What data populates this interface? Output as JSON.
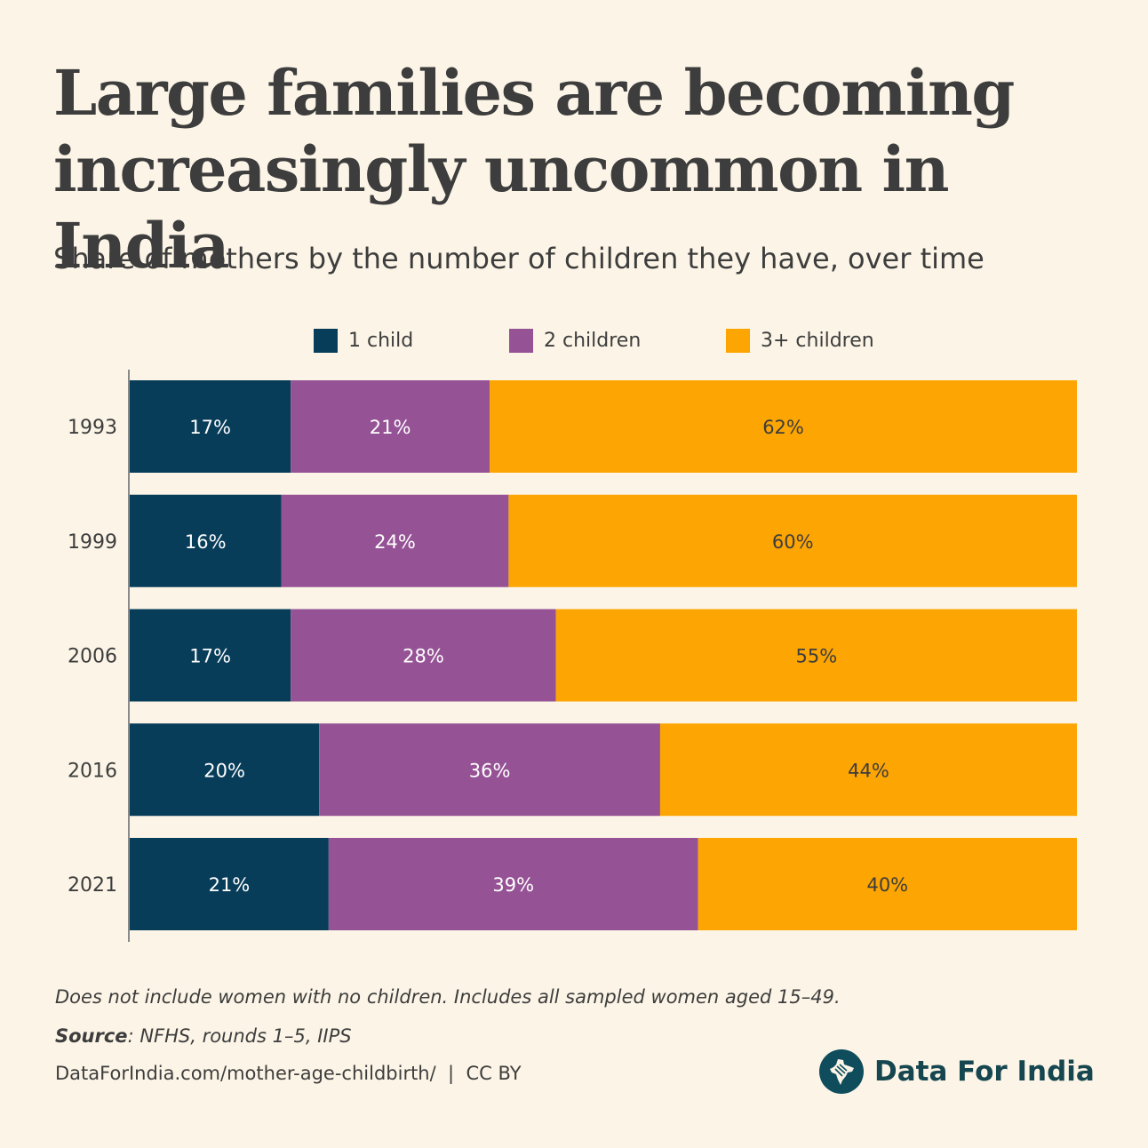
{
  "title": "Large families are becoming increasingly uncommon in India",
  "subtitle": "Share of mothers by the number of children they have, over time",
  "legend": [
    {
      "label": "1 child",
      "color": "#083d5a"
    },
    {
      "label": "2 children",
      "color": "#955395"
    },
    {
      "label": "3+ children",
      "color": "#fca503"
    }
  ],
  "chart_data": {
    "type": "bar",
    "orientation": "horizontal",
    "stacked": true,
    "categories": [
      "1993",
      "1999",
      "2006",
      "2016",
      "2021"
    ],
    "series": [
      {
        "name": "1 child",
        "color": "#083d5a",
        "values": [
          17,
          16,
          17,
          20,
          21
        ],
        "labels": [
          "17%",
          "16%",
          "17%",
          "20%",
          "21%"
        ]
      },
      {
        "name": "2 children",
        "color": "#955395",
        "values": [
          21,
          24,
          28,
          36,
          39
        ],
        "labels": [
          "21%",
          "24%",
          "28%",
          "36%",
          "39%"
        ]
      },
      {
        "name": "3+ children",
        "color": "#fca503",
        "values": [
          62,
          60,
          55,
          44,
          40
        ],
        "labels": [
          "62%",
          "60%",
          "55%",
          "44%",
          "40%"
        ]
      }
    ],
    "xlim": [
      0,
      100
    ],
    "grid": false,
    "legend_position": "top"
  },
  "footnote": "Does not include women with no children. Includes all sampled women aged 15–49.",
  "source": {
    "label": "Source",
    "text": ": NFHS, rounds 1–5, IIPS"
  },
  "credit": "DataForIndia.com/mother-age-childbirth/  |  CC BY",
  "brand": {
    "name": "Data For India",
    "logo_icon": "india-map-icon"
  }
}
